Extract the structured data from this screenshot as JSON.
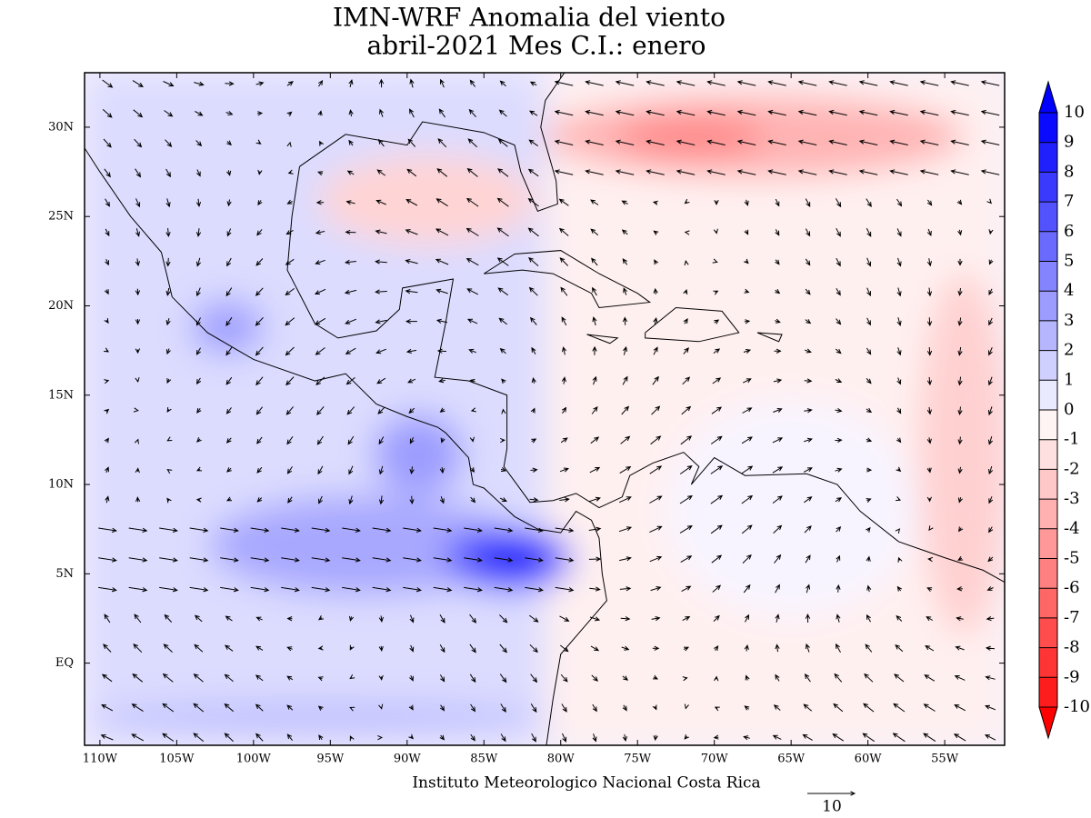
{
  "map": {
    "title": "IMN-WRF Anomalia del viento",
    "subtitle": "abril-2021 Mes C.I.: enero",
    "credit": "Instituto Meteorologico Nacional Costa Rica",
    "lonlim": [
      -111,
      -51.1
    ],
    "latlim": [
      -4.6,
      33.05
    ],
    "xticks": [
      {
        "value": -110,
        "label": "110W"
      },
      {
        "value": -105,
        "label": "105W"
      },
      {
        "value": -100,
        "label": "100W"
      },
      {
        "value": -95,
        "label": "95W"
      },
      {
        "value": -90,
        "label": "90W"
      },
      {
        "value": -85,
        "label": "85W"
      },
      {
        "value": -80,
        "label": "80W"
      },
      {
        "value": -75,
        "label": "75W"
      },
      {
        "value": -70,
        "label": "70W"
      },
      {
        "value": -65,
        "label": "65W"
      },
      {
        "value": -60,
        "label": "60W"
      },
      {
        "value": -55,
        "label": "55W"
      }
    ],
    "yticks": [
      {
        "value": 0,
        "label": "EQ"
      },
      {
        "value": 5,
        "label": "5N"
      },
      {
        "value": 10,
        "label": "10N"
      },
      {
        "value": 15,
        "label": "15N"
      },
      {
        "value": 20,
        "label": "20N"
      },
      {
        "value": 25,
        "label": "25N"
      },
      {
        "value": 30,
        "label": "30N"
      }
    ],
    "colorbar": {
      "levels": [
        10,
        9,
        8,
        7,
        6,
        5,
        4,
        3,
        2,
        1,
        0,
        -1,
        -2,
        -3,
        -4,
        -5,
        -6,
        -7,
        -8,
        -9,
        -10
      ],
      "colors": [
        "#0a0aff",
        "#2020ff",
        "#3a3aff",
        "#5252ff",
        "#6a6aff",
        "#8484ff",
        "#9c9cff",
        "#b6b6ff",
        "#d0d0ff",
        "#eaeaff",
        "#fff4f4",
        "#ffe0e0",
        "#ffc8c8",
        "#ffb0b0",
        "#ff9898",
        "#ff8080",
        "#ff6666",
        "#ff4c4c",
        "#ff3434",
        "#ff1c1c"
      ],
      "extend_colors": [
        "#0000ff",
        "#ff0000"
      ]
    },
    "reference_vector": {
      "magnitude": 10
    }
  }
}
